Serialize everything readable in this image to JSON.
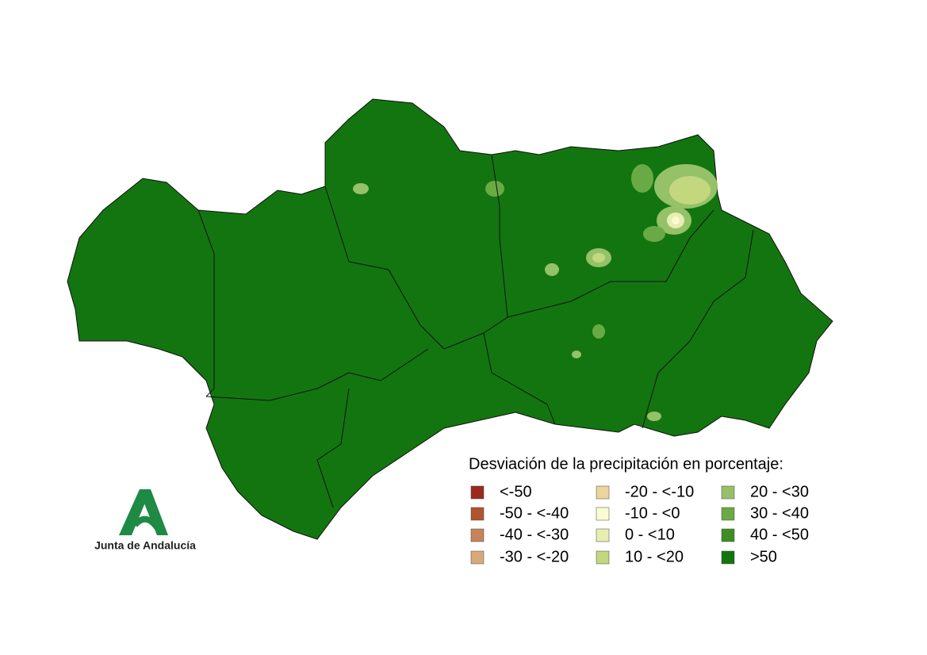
{
  "map": {
    "legend": {
      "title": "Desviación de la precipitación en porcentaje:",
      "items": [
        {
          "label": "<-50",
          "color": "#9b2a1e"
        },
        {
          "label": "-50 - <-40",
          "color": "#b0552e"
        },
        {
          "label": "-40 - <-30",
          "color": "#c4855a"
        },
        {
          "label": "-30 - <-20",
          "color": "#d8a97a"
        },
        {
          "label": "-20 - <-10",
          "color": "#ecd49a"
        },
        {
          "label": "-10 - <0",
          "color": "#fbfbd2"
        },
        {
          "label": "0 - <10",
          "color": "#e7eeb0"
        },
        {
          "label": "10 - <20",
          "color": "#c2d77e"
        },
        {
          "label": "20 - <30",
          "color": "#95c168"
        },
        {
          "label": "30 - <40",
          "color": "#6aaa44"
        },
        {
          "label": "40 - <50",
          "color": "#3f8e25"
        },
        {
          "label": ">50",
          "color": "#137510"
        }
      ]
    },
    "logo": {
      "text": "Junta de Andalucía"
    }
  }
}
